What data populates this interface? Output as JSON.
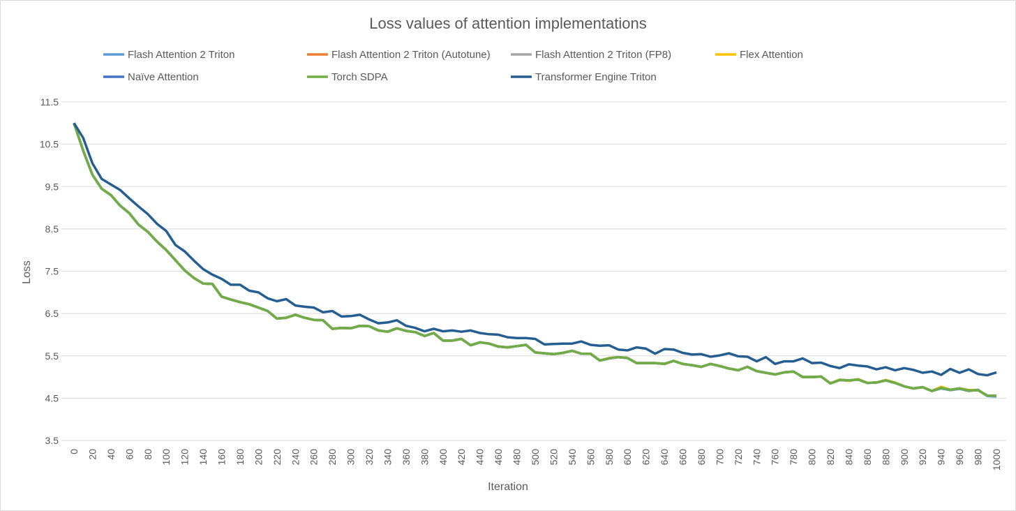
{
  "chart_data": {
    "type": "line",
    "title": "Loss values of attention implementations",
    "xlabel": "Iteration",
    "ylabel": "Loss",
    "ylim": [
      3.5,
      11.5
    ],
    "yticks": [
      3.5,
      4.5,
      5.5,
      6.5,
      7.5,
      8.5,
      9.5,
      10.5,
      11.5
    ],
    "ytick_labels": [
      "3.5",
      "4.5",
      "5.5",
      "6.5",
      "7.5",
      "8.5",
      "9.5",
      "10.5",
      "11.5"
    ],
    "xlim": [
      0,
      1000
    ],
    "xtick_step": 20,
    "grid": true,
    "legend_placement": "top",
    "x": [
      0,
      10,
      20,
      30,
      40,
      50,
      60,
      70,
      80,
      90,
      100,
      110,
      120,
      130,
      140,
      150,
      160,
      170,
      180,
      190,
      200,
      210,
      220,
      230,
      240,
      250,
      260,
      270,
      280,
      290,
      300,
      310,
      320,
      330,
      340,
      350,
      360,
      370,
      380,
      390,
      400,
      410,
      420,
      430,
      440,
      450,
      460,
      470,
      480,
      490,
      500,
      510,
      520,
      530,
      540,
      550,
      560,
      570,
      580,
      590,
      600,
      610,
      620,
      630,
      640,
      650,
      660,
      670,
      680,
      690,
      700,
      710,
      720,
      730,
      740,
      750,
      760,
      770,
      780,
      790,
      800,
      810,
      820,
      830,
      840,
      850,
      860,
      870,
      880,
      890,
      900,
      910,
      920,
      930,
      940,
      950,
      960,
      970,
      980,
      990,
      1000
    ],
    "series": [
      {
        "name": "Flash Attention 2 Triton",
        "color": "#5B9BD5",
        "values": [
          11.0,
          10.35,
          9.78,
          9.45,
          9.3,
          9.05,
          8.87,
          8.6,
          8.43,
          8.2,
          8.0,
          7.76,
          7.52,
          7.34,
          7.21,
          7.2,
          6.9,
          6.83,
          6.77,
          6.72,
          6.64,
          6.56,
          6.38,
          6.4,
          6.47,
          6.4,
          6.35,
          6.34,
          6.14,
          6.16,
          6.15,
          6.21,
          6.2,
          6.1,
          6.07,
          6.15,
          6.09,
          6.06,
          5.97,
          6.04,
          5.86,
          5.86,
          5.9,
          5.75,
          5.82,
          5.79,
          5.72,
          5.7,
          5.73,
          5.76,
          5.58,
          5.56,
          5.54,
          5.57,
          5.62,
          5.55,
          5.55,
          5.39,
          5.44,
          5.47,
          5.45,
          5.33,
          5.33,
          5.33,
          5.31,
          5.38,
          5.31,
          5.28,
          5.24,
          5.31,
          5.26,
          5.2,
          5.16,
          5.24,
          5.14,
          5.1,
          5.06,
          5.11,
          5.13,
          5.0,
          5.0,
          5.01,
          4.85,
          4.93,
          4.92,
          4.94,
          4.86,
          4.87,
          4.92,
          4.86,
          4.78,
          4.73,
          4.76,
          4.67,
          4.73,
          4.69,
          4.72,
          4.67,
          4.7,
          4.55,
          4.54
        ]
      },
      {
        "name": "Flash Attention 2 Triton (Autotune)",
        "color": "#ED7D31",
        "values": [
          11.0,
          10.35,
          9.78,
          9.45,
          9.3,
          9.05,
          8.87,
          8.6,
          8.43,
          8.2,
          8.0,
          7.76,
          7.52,
          7.34,
          7.21,
          7.2,
          6.9,
          6.83,
          6.77,
          6.72,
          6.64,
          6.56,
          6.38,
          6.4,
          6.47,
          6.4,
          6.35,
          6.34,
          6.14,
          6.16,
          6.15,
          6.21,
          6.2,
          6.1,
          6.07,
          6.15,
          6.09,
          6.06,
          5.97,
          6.04,
          5.86,
          5.86,
          5.9,
          5.75,
          5.82,
          5.79,
          5.72,
          5.7,
          5.73,
          5.76,
          5.58,
          5.56,
          5.54,
          5.57,
          5.62,
          5.55,
          5.55,
          5.39,
          5.44,
          5.47,
          5.45,
          5.33,
          5.33,
          5.33,
          5.31,
          5.38,
          5.31,
          5.28,
          5.24,
          5.31,
          5.26,
          5.2,
          5.16,
          5.24,
          5.14,
          5.1,
          5.06,
          5.11,
          5.13,
          5.0,
          5.0,
          5.01,
          4.85,
          4.93,
          4.91,
          4.95,
          4.86,
          4.87,
          4.92,
          4.86,
          4.78,
          4.73,
          4.76,
          4.67,
          4.76,
          4.7,
          4.73,
          4.69,
          4.69,
          4.56,
          4.56
        ]
      },
      {
        "name": "Flash Attention 2 Triton (FP8)",
        "color": "#A5A5A5",
        "values": [
          11.0,
          10.35,
          9.78,
          9.45,
          9.3,
          9.05,
          8.87,
          8.6,
          8.43,
          8.2,
          8.0,
          7.76,
          7.52,
          7.34,
          7.21,
          7.2,
          6.9,
          6.83,
          6.77,
          6.72,
          6.64,
          6.56,
          6.38,
          6.4,
          6.47,
          6.4,
          6.35,
          6.34,
          6.14,
          6.16,
          6.15,
          6.21,
          6.2,
          6.1,
          6.07,
          6.15,
          6.09,
          6.06,
          5.97,
          6.04,
          5.86,
          5.86,
          5.9,
          5.75,
          5.82,
          5.79,
          5.72,
          5.7,
          5.73,
          5.76,
          5.58,
          5.56,
          5.54,
          5.57,
          5.62,
          5.55,
          5.55,
          5.39,
          5.44,
          5.47,
          5.45,
          5.33,
          5.33,
          5.33,
          5.31,
          5.38,
          5.31,
          5.28,
          5.24,
          5.31,
          5.26,
          5.2,
          5.16,
          5.24,
          5.14,
          5.1,
          5.06,
          5.11,
          5.13,
          5.0,
          5.0,
          5.01,
          4.85,
          4.93,
          4.92,
          4.94,
          4.86,
          4.87,
          4.92,
          4.86,
          4.78,
          4.73,
          4.76,
          4.67,
          4.74,
          4.7,
          4.73,
          4.68,
          4.69,
          4.56,
          4.56
        ]
      },
      {
        "name": "Flex Attention",
        "color": "#FFC000",
        "values": [
          11.0,
          10.35,
          9.78,
          9.45,
          9.3,
          9.05,
          8.87,
          8.6,
          8.43,
          8.2,
          8.0,
          7.76,
          7.52,
          7.34,
          7.21,
          7.2,
          6.9,
          6.83,
          6.77,
          6.72,
          6.64,
          6.56,
          6.38,
          6.4,
          6.47,
          6.4,
          6.35,
          6.34,
          6.14,
          6.16,
          6.15,
          6.21,
          6.2,
          6.1,
          6.07,
          6.15,
          6.09,
          6.06,
          5.97,
          6.04,
          5.86,
          5.86,
          5.9,
          5.75,
          5.82,
          5.79,
          5.72,
          5.7,
          5.73,
          5.76,
          5.58,
          5.56,
          5.54,
          5.57,
          5.62,
          5.55,
          5.55,
          5.39,
          5.45,
          5.47,
          5.45,
          5.33,
          5.33,
          5.33,
          5.31,
          5.38,
          5.31,
          5.28,
          5.24,
          5.31,
          5.26,
          5.2,
          5.16,
          5.24,
          5.14,
          5.1,
          5.06,
          5.11,
          5.13,
          5.0,
          5.0,
          5.01,
          4.85,
          4.94,
          4.91,
          4.95,
          4.86,
          4.87,
          4.93,
          4.87,
          4.78,
          4.73,
          4.76,
          4.67,
          4.77,
          4.7,
          4.73,
          4.69,
          4.69,
          4.56,
          4.56
        ]
      },
      {
        "name": "Naïve Attention",
        "color": "#4472C4",
        "values": [
          11.0,
          10.35,
          9.78,
          9.45,
          9.3,
          9.05,
          8.87,
          8.6,
          8.43,
          8.2,
          8.0,
          7.76,
          7.52,
          7.34,
          7.21,
          7.2,
          6.9,
          6.83,
          6.77,
          6.72,
          6.64,
          6.56,
          6.38,
          6.4,
          6.47,
          6.4,
          6.35,
          6.34,
          6.14,
          6.16,
          6.15,
          6.21,
          6.2,
          6.1,
          6.07,
          6.15,
          6.09,
          6.06,
          5.97,
          6.04,
          5.86,
          5.86,
          5.9,
          5.75,
          5.82,
          5.79,
          5.72,
          5.7,
          5.73,
          5.76,
          5.58,
          5.56,
          5.54,
          5.57,
          5.62,
          5.55,
          5.55,
          5.39,
          5.44,
          5.47,
          5.45,
          5.33,
          5.33,
          5.33,
          5.31,
          5.38,
          5.31,
          5.28,
          5.24,
          5.31,
          5.26,
          5.2,
          5.16,
          5.24,
          5.14,
          5.1,
          5.06,
          5.11,
          5.13,
          5.0,
          5.0,
          5.01,
          4.85,
          4.93,
          4.92,
          4.94,
          4.86,
          4.87,
          4.92,
          4.86,
          4.78,
          4.73,
          4.76,
          4.67,
          4.74,
          4.7,
          4.73,
          4.68,
          4.69,
          4.56,
          4.56
        ]
      },
      {
        "name": "Torch SDPA",
        "color": "#70AD47",
        "values": [
          11.0,
          10.35,
          9.78,
          9.45,
          9.3,
          9.05,
          8.87,
          8.6,
          8.43,
          8.2,
          8.0,
          7.76,
          7.52,
          7.34,
          7.21,
          7.2,
          6.9,
          6.83,
          6.77,
          6.72,
          6.64,
          6.56,
          6.38,
          6.4,
          6.47,
          6.4,
          6.35,
          6.34,
          6.14,
          6.16,
          6.15,
          6.21,
          6.2,
          6.1,
          6.07,
          6.15,
          6.09,
          6.06,
          5.97,
          6.04,
          5.86,
          5.86,
          5.9,
          5.75,
          5.82,
          5.79,
          5.72,
          5.7,
          5.73,
          5.76,
          5.58,
          5.56,
          5.54,
          5.57,
          5.62,
          5.55,
          5.55,
          5.39,
          5.44,
          5.47,
          5.45,
          5.33,
          5.33,
          5.33,
          5.31,
          5.38,
          5.31,
          5.28,
          5.24,
          5.31,
          5.26,
          5.2,
          5.16,
          5.24,
          5.14,
          5.1,
          5.06,
          5.11,
          5.13,
          5.0,
          5.0,
          5.01,
          4.85,
          4.93,
          4.92,
          4.94,
          4.86,
          4.87,
          4.92,
          4.86,
          4.78,
          4.73,
          4.76,
          4.67,
          4.74,
          4.7,
          4.73,
          4.68,
          4.69,
          4.56,
          4.56
        ]
      },
      {
        "name": "Transformer Engine Triton",
        "color": "#255E91",
        "values": [
          11.0,
          10.65,
          10.05,
          9.68,
          9.55,
          9.42,
          9.22,
          9.03,
          8.85,
          8.62,
          8.45,
          8.12,
          7.97,
          7.75,
          7.55,
          7.42,
          7.32,
          7.18,
          7.18,
          7.04,
          7.0,
          6.86,
          6.79,
          6.84,
          6.69,
          6.66,
          6.64,
          6.53,
          6.56,
          6.43,
          6.44,
          6.47,
          6.36,
          6.27,
          6.29,
          6.34,
          6.21,
          6.16,
          6.08,
          6.14,
          6.08,
          6.1,
          6.07,
          6.1,
          6.04,
          6.01,
          6.0,
          5.94,
          5.92,
          5.92,
          5.9,
          5.77,
          5.78,
          5.79,
          5.79,
          5.84,
          5.76,
          5.74,
          5.75,
          5.65,
          5.63,
          5.7,
          5.67,
          5.55,
          5.66,
          5.65,
          5.57,
          5.53,
          5.54,
          5.48,
          5.51,
          5.56,
          5.49,
          5.48,
          5.37,
          5.47,
          5.31,
          5.37,
          5.37,
          5.44,
          5.33,
          5.34,
          5.26,
          5.21,
          5.3,
          5.27,
          5.25,
          5.18,
          5.23,
          5.16,
          5.21,
          5.17,
          5.1,
          5.13,
          5.05,
          5.19,
          5.1,
          5.18,
          5.07,
          5.04,
          5.11
        ]
      }
    ]
  }
}
